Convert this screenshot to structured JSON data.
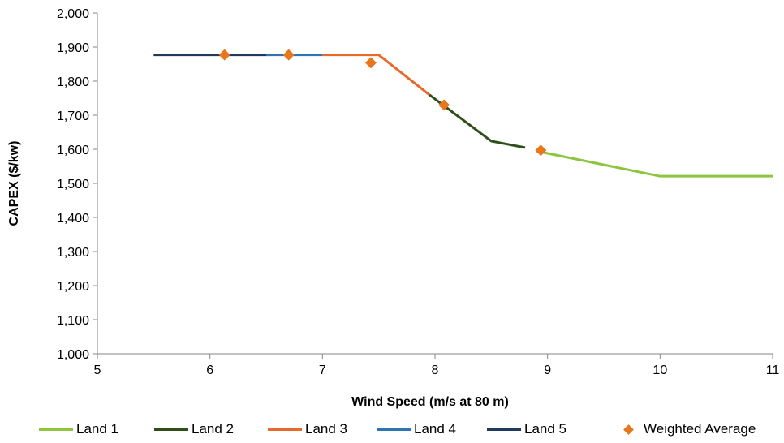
{
  "chart_data": {
    "type": "line",
    "title": "",
    "xlabel": "Wind Speed (m/s at 80 m)",
    "ylabel": "CAPEX ($/kw)",
    "xlim": [
      5,
      11
    ],
    "ylim": [
      1000,
      2000
    ],
    "x_ticks": [
      "5",
      "6",
      "7",
      "8",
      "9",
      "10",
      "11"
    ],
    "y_ticks": [
      "1,000",
      "1,100",
      "1,200",
      "1,300",
      "1,400",
      "1,500",
      "1,600",
      "1,700",
      "1,800",
      "1,900",
      "2,000"
    ],
    "grid": false,
    "legend_position": "bottom",
    "series": [
      {
        "name": "Land 1",
        "color": "#8cc63f",
        "x": [
          8.9,
          10.0,
          11.0
        ],
        "y": [
          1595,
          1521,
          1521
        ]
      },
      {
        "name": "Land 2",
        "color": "#2f4f1a",
        "x": [
          7.95,
          8.5,
          8.8
        ],
        "y": [
          1760,
          1624,
          1605
        ]
      },
      {
        "name": "Land 3",
        "color": "#e8692c",
        "x": [
          7.0,
          7.5,
          7.95
        ],
        "y": [
          1877,
          1877,
          1760
        ]
      },
      {
        "name": "Land 4",
        "color": "#2e75b6",
        "x": [
          6.5,
          7.0
        ],
        "y": [
          1877,
          1877
        ]
      },
      {
        "name": "Land 5",
        "color": "#1f3a5c",
        "x": [
          5.5,
          6.5
        ],
        "y": [
          1877,
          1877
        ]
      }
    ],
    "weighted_average": {
      "name": "Weighted Average",
      "color": "#e8761b",
      "x": [
        6.13,
        6.7,
        7.43,
        8.08,
        8.94
      ],
      "y": [
        1877,
        1877,
        1854,
        1730,
        1597
      ]
    }
  }
}
